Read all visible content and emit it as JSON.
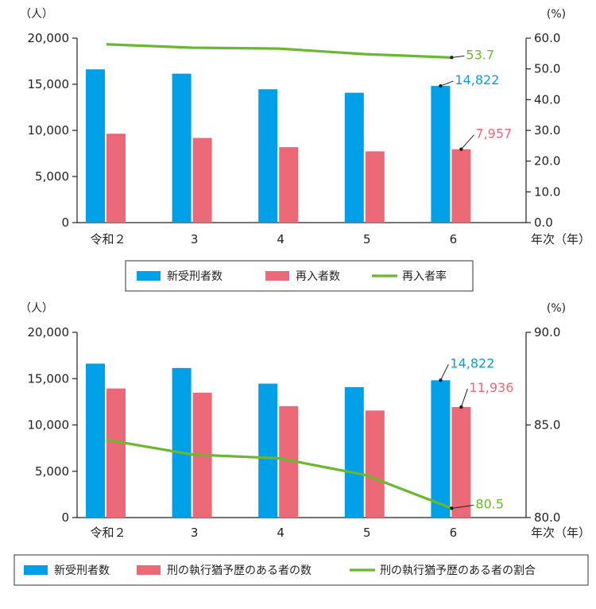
{
  "chart_data": [
    {
      "type": "bar",
      "categories": [
        "令和２",
        "3",
        "4",
        "5",
        "6"
      ],
      "xlabel": "年次（年）",
      "ylabel_left": "（人）",
      "ylabel_right": "(%)",
      "ylim_left": [
        0,
        20000
      ],
      "ylim_right": [
        0,
        60
      ],
      "left_ticks": [
        "0",
        "5,000",
        "10,000",
        "15,000",
        "20,000"
      ],
      "right_ticks": [
        "0.0",
        "10.0",
        "20.0",
        "30.0",
        "40.0",
        "50.0",
        "60.0"
      ],
      "series": [
        {
          "name": "新受刑者数",
          "kind": "bar",
          "axis": "left",
          "color": "#00a0e9",
          "values": [
            16620,
            16152,
            14460,
            14085,
            14822
          ]
        },
        {
          "name": "再入者数",
          "kind": "bar",
          "axis": "left",
          "color": "#eb6877",
          "values": [
            9640,
            9180,
            8180,
            7725,
            7957
          ]
        },
        {
          "name": "再入者率",
          "kind": "line",
          "axis": "right",
          "color": "#6ab82e",
          "values": [
            58.0,
            56.9,
            56.6,
            54.8,
            53.7
          ]
        }
      ],
      "labels": [
        {
          "series": 0,
          "index": 4,
          "text": "14,822",
          "color": "#00a0e9"
        },
        {
          "series": 1,
          "index": 4,
          "text": "7,957",
          "color": "#eb6877"
        },
        {
          "series": 2,
          "index": 4,
          "text": "53.7",
          "color": "#6ab82e"
        }
      ]
    },
    {
      "type": "bar",
      "categories": [
        "令和２",
        "3",
        "4",
        "5",
        "6"
      ],
      "xlabel": "年次（年）",
      "ylabel_left": "（人）",
      "ylabel_right": "(%)",
      "ylim_left": [
        0,
        20000
      ],
      "ylim_right": [
        80,
        90
      ],
      "left_ticks": [
        "0",
        "5,000",
        "10,000",
        "15,000",
        "20,000"
      ],
      "right_ticks": [
        "80.0",
        "85.0",
        "90.0"
      ],
      "series": [
        {
          "name": "新受刑者数",
          "kind": "bar",
          "axis": "left",
          "color": "#00a0e9",
          "values": [
            16620,
            16152,
            14460,
            14085,
            14822
          ]
        },
        {
          "name": "刑の執行猶予歴のある者の数",
          "kind": "bar",
          "axis": "left",
          "color": "#eb6877",
          "values": [
            13940,
            13480,
            12030,
            11560,
            11936
          ]
        },
        {
          "name": "刑の執行猶予歴のある者の割合",
          "kind": "line",
          "axis": "right",
          "color": "#6ab82e",
          "values": [
            84.2,
            83.4,
            83.2,
            82.3,
            80.5
          ]
        }
      ],
      "labels": [
        {
          "series": 0,
          "index": 4,
          "text": "14,822",
          "color": "#00a0e9"
        },
        {
          "series": 1,
          "index": 4,
          "text": "11,936",
          "color": "#eb6877"
        },
        {
          "series": 2,
          "index": 4,
          "text": "80.5",
          "color": "#6ab82e"
        }
      ]
    }
  ]
}
